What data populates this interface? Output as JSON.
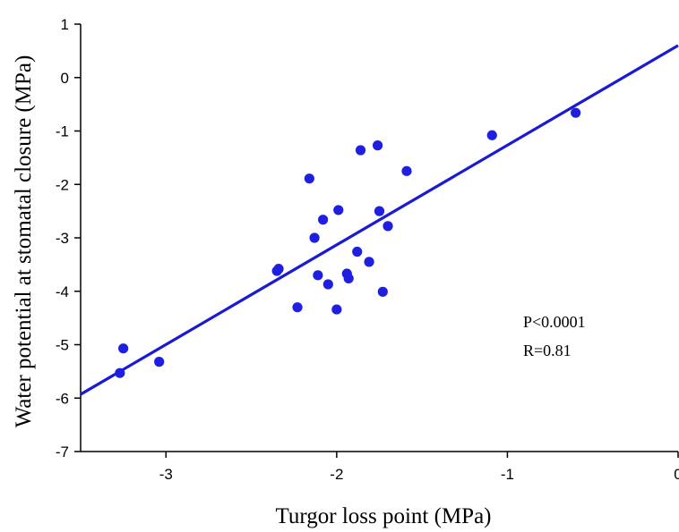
{
  "chart_data": {
    "type": "scatter",
    "xlabel": "Turgor loss point (MPa)",
    "ylabel": "Water potential at stomatal closure (MPa)",
    "xlim": [
      -3.5,
      0
    ],
    "ylim": [
      -7,
      1
    ],
    "x_ticks": [
      -3,
      -2,
      -1,
      0
    ],
    "x_tick_labels": [
      "-3",
      "-2",
      "-1",
      "0"
    ],
    "y_ticks": [
      1,
      0,
      -1,
      -2,
      -3,
      -4,
      -5,
      -6,
      -7
    ],
    "y_tick_labels": [
      "1",
      "0",
      "-1",
      "-2",
      "-3",
      "-4",
      "-5",
      "-6",
      "-7"
    ],
    "grid": false,
    "colors": {
      "points": "#1f1fe0",
      "fit_line": "#1a1ad6"
    },
    "series": [
      {
        "points": [
          {
            "x": -3.25,
            "y": -5.07
          },
          {
            "x": -3.27,
            "y": -5.53
          },
          {
            "x": -3.04,
            "y": -5.32
          },
          {
            "x": -2.34,
            "y": -3.58
          },
          {
            "x": -2.35,
            "y": -3.62
          },
          {
            "x": -2.23,
            "y": -4.3
          },
          {
            "x": -2.16,
            "y": -1.89
          },
          {
            "x": -2.13,
            "y": -3.0
          },
          {
            "x": -2.11,
            "y": -3.7
          },
          {
            "x": -2.08,
            "y": -2.66
          },
          {
            "x": -2.05,
            "y": -3.87
          },
          {
            "x": -2.0,
            "y": -4.34
          },
          {
            "x": -1.99,
            "y": -2.48
          },
          {
            "x": -1.94,
            "y": -3.67
          },
          {
            "x": -1.93,
            "y": -3.76
          },
          {
            "x": -1.88,
            "y": -3.26
          },
          {
            "x": -1.86,
            "y": -1.36
          },
          {
            "x": -1.81,
            "y": -3.45
          },
          {
            "x": -1.76,
            "y": -1.27
          },
          {
            "x": -1.75,
            "y": -2.5
          },
          {
            "x": -1.73,
            "y": -4.01
          },
          {
            "x": -1.7,
            "y": -2.78
          },
          {
            "x": -1.59,
            "y": -1.75
          },
          {
            "x": -1.09,
            "y": -1.08
          },
          {
            "x": -0.6,
            "y": -0.66
          }
        ]
      }
    ],
    "fit_line": {
      "x": [
        -3.5,
        0
      ],
      "y": [
        -5.93,
        0.6
      ]
    },
    "annotations": [
      "P<0.0001",
      "R=0.81"
    ]
  }
}
